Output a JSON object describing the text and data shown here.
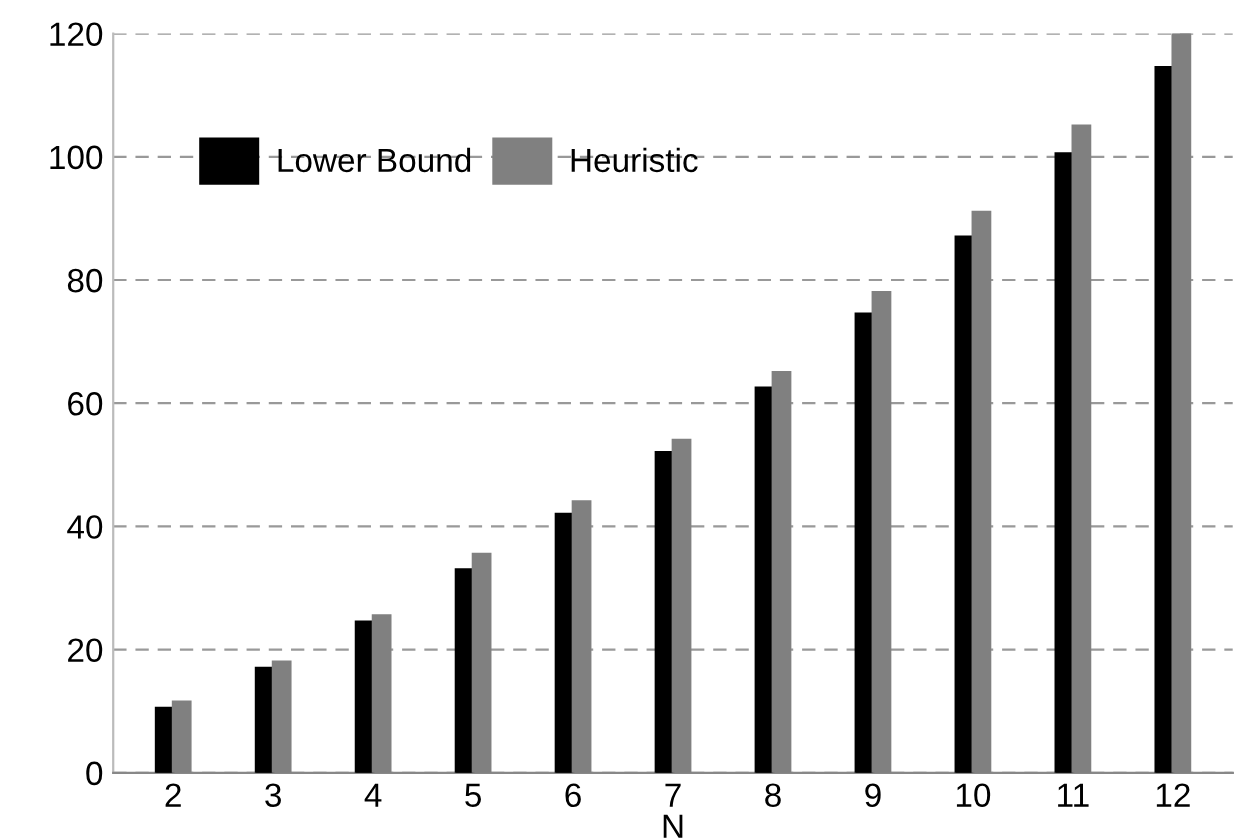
{
  "chart_data": {
    "type": "bar",
    "xlabel": "N",
    "categories": [
      "2",
      "3",
      "4",
      "5",
      "6",
      "7",
      "8",
      "9",
      "10",
      "11",
      "12"
    ],
    "series": [
      {
        "name": "Lower Bound",
        "color": "#000000",
        "values": [
          10.5,
          17,
          24.5,
          33,
          42,
          52,
          62.5,
          74.5,
          87,
          100.5,
          114.5
        ]
      },
      {
        "name": "Heuristic",
        "color": "#808080",
        "values": [
          11.5,
          18,
          25.5,
          35.5,
          44,
          54,
          65,
          78,
          91,
          105,
          120
        ]
      }
    ],
    "ylim": [
      0,
      120
    ],
    "yticks": [
      0,
      20,
      40,
      60,
      80,
      100,
      120
    ],
    "grid": "y",
    "legend": "top left"
  }
}
